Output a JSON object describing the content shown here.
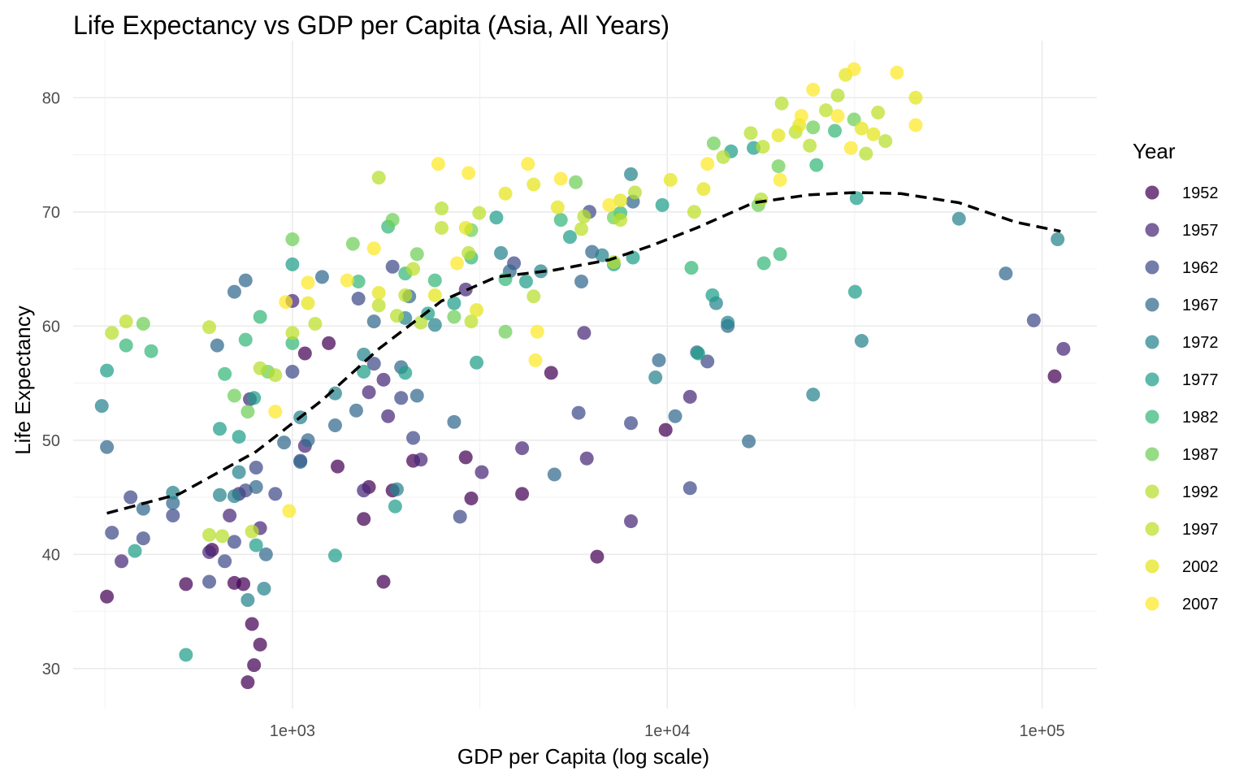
{
  "chart_data": {
    "type": "scatter",
    "title": "Life Expectancy vs GDP per Capita (Asia, All Years)",
    "xlabel": "GDP per Capita (log scale)",
    "ylabel": "Life Expectancy",
    "x_scale": "log10",
    "xlim": [
      260,
      140000
    ],
    "ylim": [
      26.5,
      85
    ],
    "x_ticks": [
      {
        "value": 1000,
        "label": "1e+03"
      },
      {
        "value": 10000,
        "label": "1e+04"
      },
      {
        "value": 100000,
        "label": "1e+05"
      }
    ],
    "y_ticks": [
      {
        "value": 30,
        "label": "30"
      },
      {
        "value": 40,
        "label": "40"
      },
      {
        "value": 50,
        "label": "50"
      },
      {
        "value": 60,
        "label": "60"
      },
      {
        "value": 70,
        "label": "70"
      },
      {
        "value": 80,
        "label": "80"
      }
    ],
    "grid": true,
    "legend": {
      "title": "Year",
      "position": "right"
    },
    "series": [
      {
        "name": "1952",
        "color": "#440154",
        "points": [
          [
            320,
            36.3
          ],
          [
            520,
            37.4
          ],
          [
            610,
            40.4
          ],
          [
            700,
            37.5
          ],
          [
            740,
            37.4
          ],
          [
            760,
            28.8
          ],
          [
            790,
            30.3
          ],
          [
            780,
            33.9
          ],
          [
            820,
            32.1
          ],
          [
            1080,
            57.6
          ],
          [
            1250,
            58.5
          ],
          [
            1320,
            47.7
          ],
          [
            1550,
            43.1
          ],
          [
            1600,
            45.9
          ],
          [
            1750,
            37.6
          ],
          [
            1850,
            45.6
          ],
          [
            2100,
            48.2
          ],
          [
            2900,
            48.5
          ],
          [
            3000,
            44.9
          ],
          [
            4100,
            45.3
          ],
          [
            4900,
            55.9
          ],
          [
            6500,
            39.8
          ],
          [
            9900,
            50.9
          ],
          [
            108000,
            55.6
          ]
        ]
      },
      {
        "name": "1957",
        "color": "#482878",
        "points": [
          [
            350,
            39.4
          ],
          [
            600,
            40.2
          ],
          [
            680,
            43.4
          ],
          [
            720,
            45.3
          ],
          [
            770,
            53.6
          ],
          [
            820,
            42.3
          ],
          [
            1000,
            62.2
          ],
          [
            1080,
            49.5
          ],
          [
            1550,
            45.6
          ],
          [
            1600,
            54.2
          ],
          [
            1750,
            55.3
          ],
          [
            1800,
            52.1
          ],
          [
            2200,
            48.3
          ],
          [
            2900,
            63.2
          ],
          [
            3200,
            47.2
          ],
          [
            4100,
            49.3
          ],
          [
            6100,
            48.4
          ],
          [
            6000,
            59.4
          ],
          [
            8000,
            42.9
          ],
          [
            11500,
            53.8
          ],
          [
            114000,
            58.0
          ]
        ]
      },
      {
        "name": "1962",
        "color": "#3e4989",
        "points": [
          [
            330,
            41.9
          ],
          [
            370,
            45.0
          ],
          [
            400,
            41.4
          ],
          [
            480,
            43.4
          ],
          [
            600,
            37.6
          ],
          [
            660,
            39.4
          ],
          [
            700,
            41.1
          ],
          [
            750,
            45.6
          ],
          [
            800,
            47.6
          ],
          [
            900,
            45.3
          ],
          [
            1000,
            56.0
          ],
          [
            1050,
            48.2
          ],
          [
            1500,
            62.4
          ],
          [
            1650,
            56.7
          ],
          [
            1850,
            65.2
          ],
          [
            1950,
            53.7
          ],
          [
            2100,
            50.2
          ],
          [
            2800,
            43.3
          ],
          [
            3900,
            65.5
          ],
          [
            5800,
            52.4
          ],
          [
            6200,
            70.0
          ],
          [
            8000,
            51.5
          ],
          [
            11500,
            45.8
          ],
          [
            12800,
            56.9
          ],
          [
            95000,
            60.5
          ]
        ]
      },
      {
        "name": "1967",
        "color": "#31688e",
        "points": [
          [
            320,
            49.4
          ],
          [
            400,
            44.0
          ],
          [
            480,
            44.5
          ],
          [
            630,
            58.3
          ],
          [
            700,
            63.0
          ],
          [
            750,
            64.0
          ],
          [
            800,
            45.9
          ],
          [
            850,
            40.0
          ],
          [
            950,
            49.8
          ],
          [
            1050,
            48.1
          ],
          [
            1100,
            50.0
          ],
          [
            1200,
            64.3
          ],
          [
            1300,
            51.3
          ],
          [
            1480,
            52.6
          ],
          [
            1650,
            60.4
          ],
          [
            1950,
            56.4
          ],
          [
            2050,
            62.6
          ],
          [
            2150,
            53.9
          ],
          [
            2700,
            51.6
          ],
          [
            3800,
            64.8
          ],
          [
            5000,
            47.0
          ],
          [
            5900,
            63.9
          ],
          [
            6300,
            66.5
          ],
          [
            8100,
            70.9
          ],
          [
            9500,
            57.0
          ],
          [
            10500,
            52.1
          ],
          [
            12000,
            57.7
          ],
          [
            14500,
            60.0
          ],
          [
            16500,
            49.9
          ],
          [
            80000,
            64.6
          ]
        ]
      },
      {
        "name": "1972",
        "color": "#26828e",
        "points": [
          [
            310,
            53.0
          ],
          [
            480,
            45.4
          ],
          [
            640,
            45.2
          ],
          [
            700,
            45.1
          ],
          [
            720,
            47.2
          ],
          [
            760,
            36.0
          ],
          [
            840,
            37.0
          ],
          [
            1050,
            52.0
          ],
          [
            1300,
            54.1
          ],
          [
            1550,
            57.5
          ],
          [
            1900,
            45.7
          ],
          [
            2000,
            60.7
          ],
          [
            2400,
            60.1
          ],
          [
            3600,
            66.4
          ],
          [
            4600,
            64.8
          ],
          [
            6700,
            66.2
          ],
          [
            8000,
            73.3
          ],
          [
            9300,
            55.5
          ],
          [
            13500,
            62.0
          ],
          [
            14500,
            60.3
          ],
          [
            24500,
            54.0
          ],
          [
            33000,
            58.7
          ],
          [
            60000,
            69.4
          ],
          [
            110000,
            67.6
          ]
        ]
      },
      {
        "name": "1977",
        "color": "#1f9e89",
        "points": [
          [
            320,
            56.1
          ],
          [
            380,
            40.3
          ],
          [
            520,
            31.2
          ],
          [
            640,
            51.0
          ],
          [
            720,
            50.3
          ],
          [
            790,
            53.7
          ],
          [
            800,
            40.8
          ],
          [
            1000,
            65.4
          ],
          [
            1300,
            39.9
          ],
          [
            1550,
            56.0
          ],
          [
            1880,
            44.2
          ],
          [
            2000,
            55.9
          ],
          [
            2300,
            61.1
          ],
          [
            2700,
            62.0
          ],
          [
            3100,
            56.8
          ],
          [
            3500,
            69.5
          ],
          [
            4200,
            63.9
          ],
          [
            5500,
            67.8
          ],
          [
            7200,
            65.4
          ],
          [
            8100,
            66.0
          ],
          [
            9700,
            70.6
          ],
          [
            12100,
            57.6
          ],
          [
            13200,
            62.7
          ],
          [
            14800,
            75.3
          ],
          [
            17000,
            75.6
          ],
          [
            31700,
            63.0
          ],
          [
            32000,
            71.2
          ]
        ]
      },
      {
        "name": "1982",
        "color": "#35b779",
        "points": [
          [
            360,
            58.3
          ],
          [
            420,
            57.8
          ],
          [
            660,
            55.8
          ],
          [
            750,
            58.8
          ],
          [
            820,
            60.8
          ],
          [
            1000,
            58.5
          ],
          [
            1500,
            63.9
          ],
          [
            1800,
            68.7
          ],
          [
            2000,
            64.6
          ],
          [
            2400,
            64.0
          ],
          [
            3000,
            66.0
          ],
          [
            3700,
            64.1
          ],
          [
            5200,
            69.3
          ],
          [
            7500,
            69.9
          ],
          [
            11600,
            65.1
          ],
          [
            18100,
            65.5
          ],
          [
            20000,
            66.3
          ],
          [
            25000,
            74.1
          ],
          [
            28000,
            77.1
          ]
        ]
      },
      {
        "name": "1987",
        "color": "#6ece58",
        "points": [
          [
            400,
            60.2
          ],
          [
            700,
            53.9
          ],
          [
            760,
            52.5
          ],
          [
            860,
            56.0
          ],
          [
            1000,
            67.6
          ],
          [
            1450,
            67.2
          ],
          [
            1850,
            69.3
          ],
          [
            2150,
            66.3
          ],
          [
            2700,
            60.8
          ],
          [
            3000,
            68.4
          ],
          [
            3700,
            59.5
          ],
          [
            5700,
            72.6
          ],
          [
            7200,
            69.5
          ],
          [
            13300,
            76.0
          ],
          [
            17500,
            70.6
          ],
          [
            19800,
            74.0
          ],
          [
            24500,
            77.4
          ],
          [
            31500,
            78.1
          ]
        ]
      },
      {
        "name": "1992",
        "color": "#b5de2b",
        "points": [
          [
            330,
            59.4
          ],
          [
            600,
            41.7
          ],
          [
            650,
            41.6
          ],
          [
            820,
            56.3
          ],
          [
            900,
            55.7
          ],
          [
            1700,
            73.0
          ],
          [
            1900,
            60.9
          ],
          [
            2200,
            60.3
          ],
          [
            2500,
            70.3
          ],
          [
            2950,
            66.4
          ],
          [
            4400,
            62.6
          ],
          [
            6000,
            69.6
          ],
          [
            7200,
            65.6
          ],
          [
            8200,
            71.7
          ],
          [
            14100,
            74.8
          ],
          [
            16700,
            76.9
          ],
          [
            17800,
            71.1
          ],
          [
            20200,
            79.5
          ],
          [
            24000,
            75.8
          ],
          [
            28500,
            80.2
          ],
          [
            33900,
            75.1
          ],
          [
            38200,
            76.2
          ]
        ]
      },
      {
        "name": "1997",
        "color": "#bddf26",
        "points": [
          [
            360,
            60.4
          ],
          [
            600,
            59.9
          ],
          [
            780,
            42.0
          ],
          [
            1000,
            59.4
          ],
          [
            1150,
            60.2
          ],
          [
            1700,
            61.8
          ],
          [
            2000,
            62.7
          ],
          [
            2100,
            65.0
          ],
          [
            2500,
            68.6
          ],
          [
            3000,
            60.4
          ],
          [
            3150,
            69.9
          ],
          [
            5900,
            68.5
          ],
          [
            7500,
            69.3
          ],
          [
            11800,
            70.0
          ],
          [
            18000,
            75.7
          ],
          [
            22000,
            77.0
          ],
          [
            26500,
            78.9
          ],
          [
            36500,
            78.7
          ]
        ]
      },
      {
        "name": "2002",
        "color": "#e4e419",
        "points": [
          [
            1100,
            62.0
          ],
          [
            1700,
            62.9
          ],
          [
            2400,
            62.7
          ],
          [
            2900,
            68.6
          ],
          [
            3100,
            61.4
          ],
          [
            3700,
            71.6
          ],
          [
            4400,
            72.4
          ],
          [
            5100,
            70.4
          ],
          [
            7500,
            71.0
          ],
          [
            10200,
            72.8
          ],
          [
            12500,
            72.0
          ],
          [
            19800,
            76.7
          ],
          [
            22500,
            77.6
          ],
          [
            29900,
            82.0
          ],
          [
            33000,
            77.3
          ],
          [
            35500,
            76.8
          ],
          [
            46000,
            80.0
          ]
        ]
      },
      {
        "name": "2007",
        "color": "#fde725",
        "points": [
          [
            900,
            52.5
          ],
          [
            980,
            43.8
          ],
          [
            960,
            62.1
          ],
          [
            1100,
            63.8
          ],
          [
            1400,
            64.0
          ],
          [
            1650,
            66.8
          ],
          [
            2450,
            74.2
          ],
          [
            2750,
            65.5
          ],
          [
            2950,
            73.4
          ],
          [
            4250,
            74.2
          ],
          [
            4500,
            59.5
          ],
          [
            4450,
            57.0
          ],
          [
            5200,
            72.9
          ],
          [
            7000,
            70.6
          ],
          [
            12800,
            74.2
          ],
          [
            20000,
            72.8
          ],
          [
            22800,
            78.4
          ],
          [
            24500,
            80.7
          ],
          [
            28500,
            78.4
          ],
          [
            30900,
            75.6
          ],
          [
            31500,
            82.5
          ],
          [
            41000,
            82.2
          ],
          [
            46000,
            77.6
          ]
        ]
      }
    ],
    "smooth_line": {
      "style": "dashed",
      "color": "#000000",
      "points": [
        [
          320,
          43.6
        ],
        [
          500,
          45.3
        ],
        [
          800,
          49.0
        ],
        [
          1200,
          53.5
        ],
        [
          1700,
          58.0
        ],
        [
          2500,
          62.2
        ],
        [
          3500,
          64.3
        ],
        [
          5000,
          64.9
        ],
        [
          7000,
          65.8
        ],
        [
          9000,
          67.0
        ],
        [
          12000,
          68.6
        ],
        [
          17000,
          70.8
        ],
        [
          24000,
          71.5
        ],
        [
          32000,
          71.7
        ],
        [
          42000,
          71.6
        ],
        [
          60000,
          70.8
        ],
        [
          85000,
          69.1
        ],
        [
          112000,
          68.3
        ]
      ]
    }
  }
}
